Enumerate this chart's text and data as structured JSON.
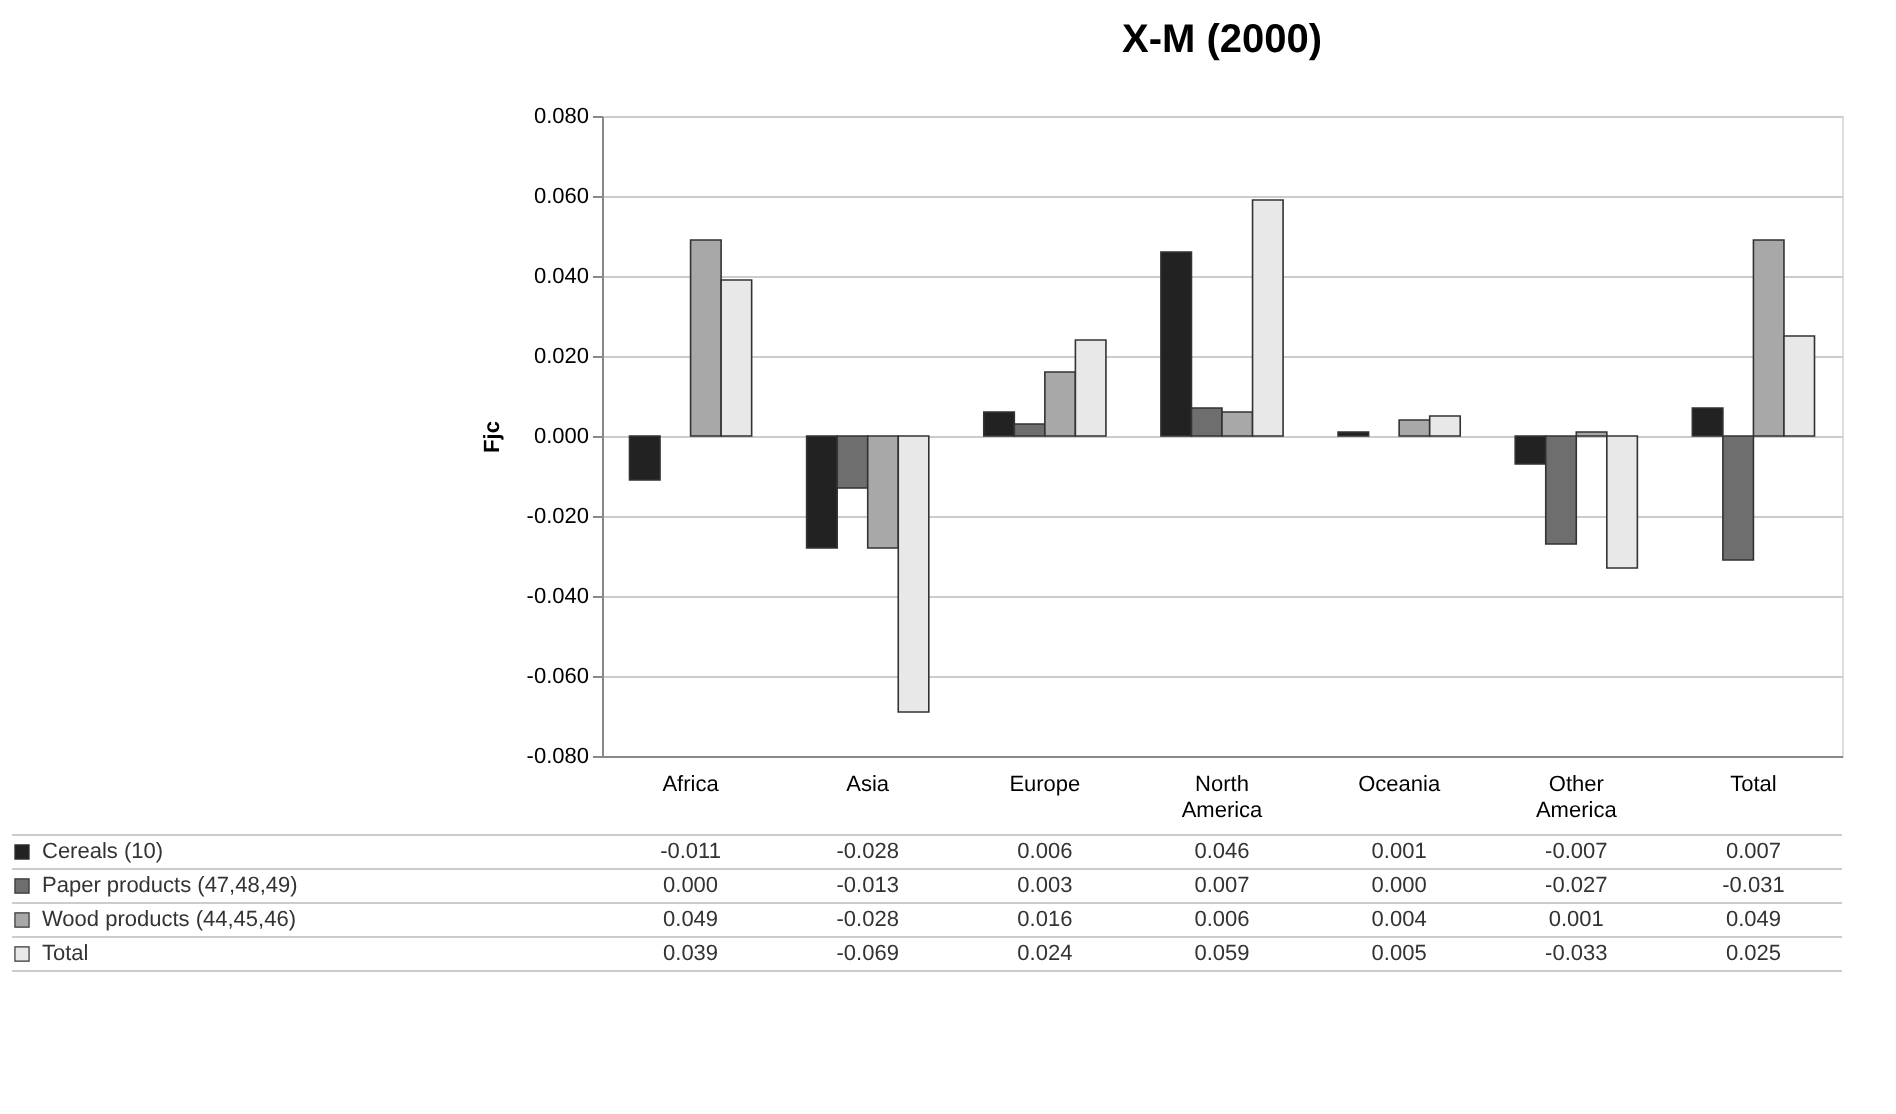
{
  "chart_data": {
    "type": "bar",
    "title": "X-M (2000)",
    "ylabel": "Fjc",
    "categories": [
      "Africa",
      "Asia",
      "Europe",
      "North America",
      "Oceania",
      "Other America",
      "Total"
    ],
    "series": [
      {
        "name": "Cereals (10)",
        "color": "#222222",
        "values": [
          -0.011,
          -0.028,
          0.006,
          0.046,
          0.001,
          -0.007,
          0.007
        ],
        "value_labels": [
          "-0.011",
          "-0.028",
          "0.006",
          "0.046",
          "0.001",
          "-0.007",
          "0.007"
        ]
      },
      {
        "name": "Paper products (47,48,49)",
        "color": "#6e6e6e",
        "values": [
          0.0,
          -0.013,
          0.003,
          0.007,
          0.0,
          -0.027,
          -0.031
        ],
        "value_labels": [
          "0.000",
          "-0.013",
          "0.003",
          "0.007",
          "0.000",
          "-0.027",
          "-0.031"
        ]
      },
      {
        "name": "Wood products (44,45,46)",
        "color": "#a8a8a8",
        "values": [
          0.049,
          -0.028,
          0.016,
          0.006,
          0.004,
          0.001,
          0.049
        ],
        "value_labels": [
          "0.049",
          "-0.028",
          "0.016",
          "0.006",
          "0.004",
          "0.001",
          "0.049"
        ]
      },
      {
        "name": "Total",
        "color": "#e8e8e8",
        "values": [
          0.039,
          -0.069,
          0.024,
          0.059,
          0.005,
          -0.033,
          0.025
        ],
        "value_labels": [
          "0.039",
          "-0.069",
          "0.024",
          "0.059",
          "0.005",
          "-0.033",
          "0.025"
        ]
      }
    ],
    "ylim": [
      -0.08,
      0.08
    ],
    "yticks": [
      {
        "value": -0.08,
        "label": "-0.080"
      },
      {
        "value": -0.06,
        "label": "-0.060"
      },
      {
        "value": -0.04,
        "label": "-0.040"
      },
      {
        "value": -0.02,
        "label": "-0.020"
      },
      {
        "value": 0.0,
        "label": "0.000"
      },
      {
        "value": 0.02,
        "label": "0.020"
      },
      {
        "value": 0.04,
        "label": "0.040"
      },
      {
        "value": 0.06,
        "label": "0.060"
      },
      {
        "value": 0.08,
        "label": "0.080"
      }
    ],
    "grid": "y",
    "legend": "bottom"
  }
}
